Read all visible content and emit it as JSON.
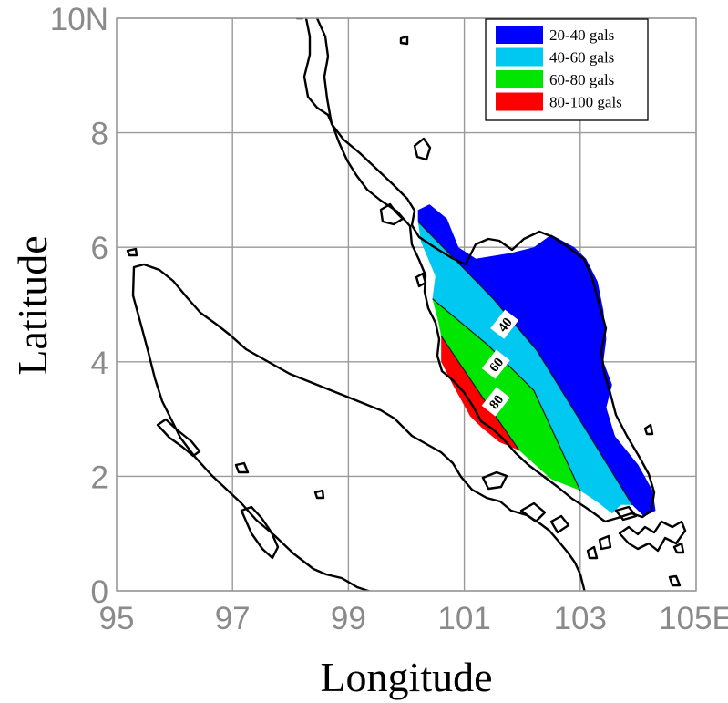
{
  "axes": {
    "x_title": "Longitude",
    "y_title": "Latitude",
    "x_ticks": [
      {
        "value": 95,
        "label": "95"
      },
      {
        "value": 97,
        "label": "97"
      },
      {
        "value": 99,
        "label": "99"
      },
      {
        "value": 101,
        "label": "101"
      },
      {
        "value": 103,
        "label": "103"
      },
      {
        "value": 105,
        "label": "105E"
      }
    ],
    "y_ticks": [
      {
        "value": 0,
        "label": "0"
      },
      {
        "value": 2,
        "label": "2"
      },
      {
        "value": 4,
        "label": "4"
      },
      {
        "value": 6,
        "label": "6"
      },
      {
        "value": 8,
        "label": "8"
      },
      {
        "value": 10,
        "label": "10N"
      }
    ],
    "x_range": [
      95,
      105
    ],
    "y_range": [
      0,
      10
    ],
    "grid": true
  },
  "legend": {
    "placement": "top-right",
    "items": [
      {
        "label": "20-40 gals",
        "color": "#0000ff"
      },
      {
        "label": "40-60 gals",
        "color": "#00c8f0"
      },
      {
        "label": "60-80 gals",
        "color": "#00e600"
      },
      {
        "label": "80-100 gals",
        "color": "#ff0000"
      }
    ]
  },
  "contour_labels": [
    {
      "text": "40",
      "lon": 101.7,
      "lat": 4.65
    },
    {
      "text": "60",
      "lon": 101.55,
      "lat": 3.95
    },
    {
      "text": "80",
      "lon": 101.55,
      "lat": 3.3
    }
  ],
  "chart_data": {
    "type": "map",
    "region": "Peninsular Malaysia",
    "zones": [
      {
        "label": "20-40 gals",
        "color": "#0000ff",
        "polygon": [
          [
            100.2,
            6.65
          ],
          [
            100.4,
            6.75
          ],
          [
            100.7,
            6.5
          ],
          [
            100.9,
            6.0
          ],
          [
            101.2,
            5.8
          ],
          [
            101.8,
            5.9
          ],
          [
            102.2,
            6.0
          ],
          [
            102.5,
            6.22
          ],
          [
            102.9,
            6.0
          ],
          [
            103.1,
            5.8
          ],
          [
            103.3,
            5.4
          ],
          [
            103.4,
            4.9
          ],
          [
            103.45,
            4.4
          ],
          [
            103.4,
            4.0
          ],
          [
            103.55,
            3.6
          ],
          [
            103.45,
            3.2
          ],
          [
            103.6,
            2.7
          ],
          [
            104.0,
            2.2
          ],
          [
            104.25,
            1.75
          ],
          [
            104.3,
            1.4
          ],
          [
            104.1,
            1.3
          ],
          [
            103.9,
            1.5
          ],
          [
            102.25,
            4.2
          ],
          [
            101.5,
            5.1
          ],
          [
            100.2,
            6.45
          ]
        ]
      },
      {
        "label": "40-60 gals",
        "color": "#00c8f0",
        "polygon": [
          [
            100.2,
            6.45
          ],
          [
            101.5,
            5.1
          ],
          [
            102.25,
            4.2
          ],
          [
            103.9,
            1.5
          ],
          [
            103.7,
            1.5
          ],
          [
            103.55,
            1.35
          ],
          [
            103.3,
            1.55
          ],
          [
            103.0,
            1.75
          ],
          [
            102.2,
            3.5
          ],
          [
            101.4,
            4.3
          ],
          [
            100.45,
            5.1
          ],
          [
            100.5,
            5.5
          ],
          [
            100.25,
            6.1
          ]
        ]
      },
      {
        "label": "60-80 gals",
        "color": "#00e600",
        "polygon": [
          [
            100.45,
            5.1
          ],
          [
            101.4,
            4.3
          ],
          [
            102.2,
            3.5
          ],
          [
            103.0,
            1.75
          ],
          [
            102.5,
            1.95
          ],
          [
            101.95,
            2.45
          ],
          [
            101.3,
            3.4
          ],
          [
            100.6,
            4.45
          ],
          [
            100.55,
            4.7
          ]
        ]
      },
      {
        "label": "80-100 gals",
        "color": "#ff0000",
        "polygon": [
          [
            100.6,
            4.45
          ],
          [
            101.3,
            3.4
          ],
          [
            101.95,
            2.45
          ],
          [
            101.6,
            2.6
          ],
          [
            101.3,
            2.85
          ],
          [
            101.1,
            3.05
          ],
          [
            100.8,
            3.6
          ],
          [
            100.6,
            4.0
          ]
        ]
      }
    ]
  }
}
